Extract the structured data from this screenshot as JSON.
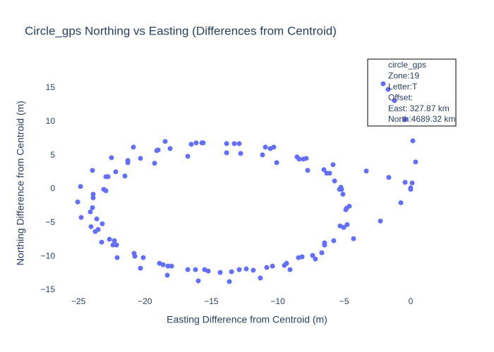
{
  "chart_data": {
    "type": "scatter",
    "title": "Circle_gps Northing vs Easting (Differences from Centroid)",
    "x_label": "Easting Difference from Centroid (m)",
    "y_label": "Northing Difference from Centroid (m)",
    "color": "#636efa",
    "grid": false,
    "xlim": [
      -26.65,
      2.02
    ],
    "ylim": [
      -15.84,
      17.61
    ],
    "xticks": [
      {
        "value": -25,
        "label": "−25"
      },
      {
        "value": -20,
        "label": "−20"
      },
      {
        "value": -15,
        "label": "−15"
      },
      {
        "value": -10,
        "label": "−10"
      },
      {
        "value": -5,
        "label": "−5"
      },
      0
    ],
    "yticks": [
      {
        "value": -15,
        "label": "−15"
      },
      {
        "value": -10,
        "label": "−10"
      },
      {
        "value": -5,
        "label": "−5"
      },
      0,
      5,
      10,
      15
    ],
    "x": [
      -24.84,
      -25.05,
      -24.79,
      -23.94,
      -23.89,
      -23.89,
      -23.94,
      -24.1,
      -24.05,
      -23.73,
      -23.62,
      -23.51,
      -23.25,
      -23.2,
      -23.09,
      -22.93,
      -22.93,
      -22.77,
      -22.66,
      -22.51,
      -22.4,
      -22.29,
      -22.19,
      -22.08,
      -22.13,
      -21.5,
      -21.28,
      -21.28,
      -20.86,
      -20.81,
      -20.75,
      -20.33,
      -20.33,
      -20.12,
      -19.27,
      -19.11,
      -19.0,
      -18.9,
      -18.63,
      -18.47,
      -18.31,
      -18.26,
      -18.1,
      -17.99,
      -16.77,
      -16.77,
      -16.51,
      -16.19,
      -16.14,
      -15.98,
      -15.71,
      -15.61,
      -15.5,
      -15.23,
      -14.33,
      -13.85,
      -13.85,
      -13.64,
      -13.48,
      -13.27,
      -12.9,
      -12.9,
      -12.79,
      -12.37,
      -11.84,
      -11.31,
      -11.15,
      -10.93,
      -10.83,
      -10.56,
      -10.4,
      -10.3,
      -10.08,
      -9.5,
      -9.34,
      -9.08,
      -8.55,
      -8.39,
      -8.44,
      -8.17,
      -8.07,
      -7.86,
      -7.75,
      -7.38,
      -7.17,
      -6.69,
      -6.53,
      -6.48,
      -6.48,
      -6.32,
      -6.1,
      -5.84,
      -5.79,
      -5.73,
      -5.36,
      -5.25,
      -5.31,
      -5.2,
      -5.1,
      -5.04,
      -4.88,
      -4.83,
      -4.78,
      -4.62,
      -4.3,
      -3.34,
      -2.28,
      -1.65,
      -0.74,
      -0.42,
      0.0,
      0.0,
      0.11,
      0.16,
      0.37,
      -2.07,
      -1.7,
      -1.22,
      -0.42
    ],
    "y": [
      0.37,
      -1.93,
      -4.23,
      2.77,
      -0.78,
      -1.31,
      -2.77,
      -3.4,
      -5.59,
      -6.32,
      -4.44,
      -6.01,
      -7.89,
      -5.17,
      -0.05,
      1.83,
      -0.26,
      1.83,
      -7.47,
      4.65,
      -8.31,
      -7.68,
      2.56,
      -10.19,
      -8.31,
      1.93,
      4.23,
      3.92,
      6.22,
      -9.56,
      -9.98,
      -11.76,
      4.55,
      -10.19,
      3.82,
      5.7,
      5.8,
      -11.03,
      -11.24,
      7.06,
      -12.8,
      -11.45,
      6.01,
      -11.45,
      4.86,
      -11.97,
      6.64,
      -11.97,
      6.85,
      -13.64,
      6.85,
      6.85,
      -11.97,
      -12.18,
      -12.39,
      6.74,
      5.38,
      -13.75,
      -12.28,
      6.74,
      -11.97,
      6.74,
      5.28,
      -11.86,
      -12.07,
      -13.22,
      5.07,
      6.22,
      -11.65,
      6.01,
      -11.45,
      6.22,
      3.92,
      -11.34,
      -11.03,
      -11.97,
      4.76,
      4.44,
      -10.19,
      -10.08,
      4.44,
      4.55,
      2.77,
      -9.87,
      -10.4,
      -9.46,
      2.87,
      -8.31,
      -8.0,
      2.35,
      2.35,
      3.61,
      -7.68,
      1.2,
      -0.05,
      0.26,
      -5.49,
      -0.05,
      -0.78,
      -5.7,
      -3.08,
      -2.87,
      -5.28,
      -2.56,
      -7.37,
      2.67,
      -4.76,
      1.72,
      -2.04,
      0.99,
      0.16,
      -0.05,
      0.89,
      7.16,
      4.02,
      15.63,
      14.79,
      13.12,
      10.3
    ],
    "annotation": [
      "circle_gps",
      "Zone:19",
      "Letter:T",
      "Offset:",
      "East: 327.87 km",
      "North:4689.32 km"
    ]
  }
}
